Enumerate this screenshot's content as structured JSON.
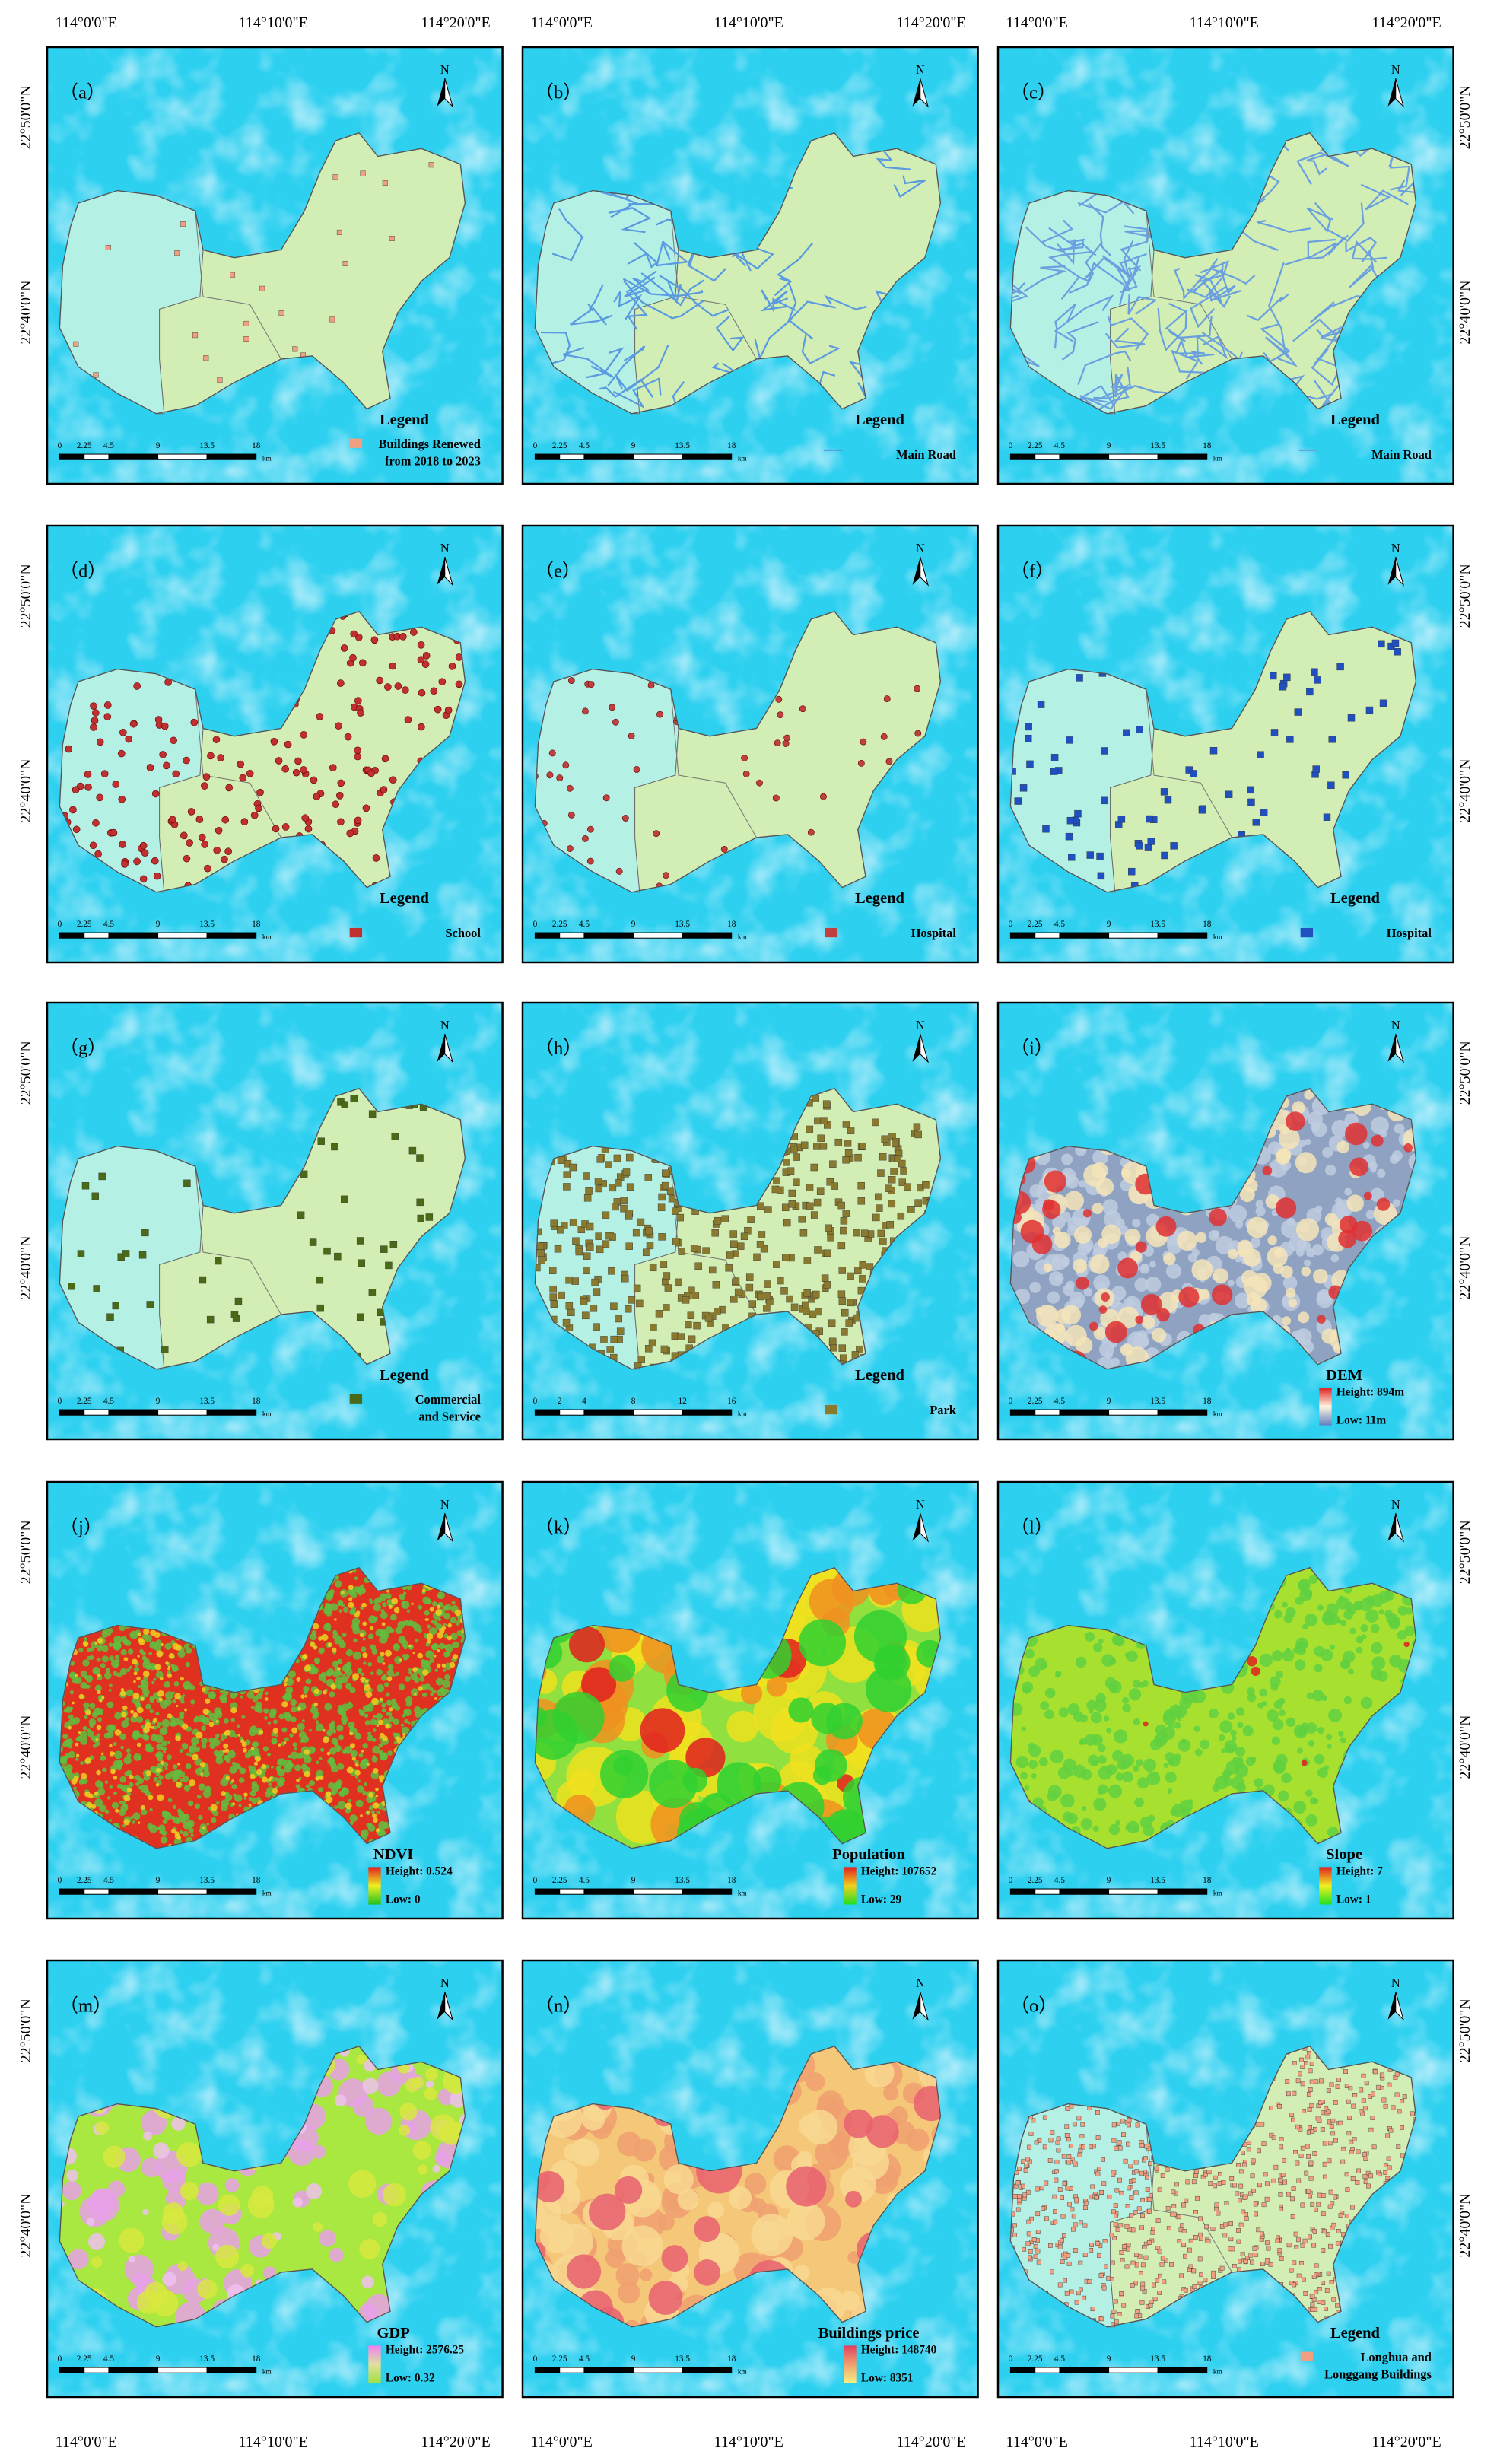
{
  "axes": {
    "lon": [
      "114°0'0\"E",
      "114°10'0\"E",
      "114°20'0\"E"
    ],
    "lat": [
      "22°50'0\"N",
      "22°40'0\"N"
    ]
  },
  "north": "N",
  "scale_unit": "km",
  "panels": [
    {
      "label": "（a）",
      "legend_title": "Legend",
      "legend_text": [
        "Buildings Renewed",
        "from 2018 to 2023"
      ],
      "scale": [
        "0",
        "2.25",
        "4.5",
        "9",
        "13.5",
        "18"
      ]
    },
    {
      "label": "（b）",
      "legend_title": "Legend",
      "legend_text": [
        "Main Road"
      ],
      "scale": [
        "0",
        "2.25",
        "4.5",
        "9",
        "13.5",
        "18"
      ]
    },
    {
      "label": "（c）",
      "legend_title": "Legend",
      "legend_text": [
        "Main Road"
      ],
      "scale": [
        "0",
        "2.25",
        "4.5",
        "9",
        "13.5",
        "18"
      ]
    },
    {
      "label": "（d）",
      "legend_title": "Legend",
      "legend_text": [
        "School"
      ],
      "scale": [
        "0",
        "2.25",
        "4.5",
        "9",
        "13.5",
        "18"
      ]
    },
    {
      "label": "（e）",
      "legend_title": "Legend",
      "legend_text": [
        "Hospital"
      ],
      "scale": [
        "0",
        "2.25",
        "4.5",
        "9",
        "13.5",
        "18"
      ]
    },
    {
      "label": "（f）",
      "legend_title": "Legend",
      "legend_text": [
        "Hospital"
      ],
      "scale": [
        "0",
        "2.25",
        "4.5",
        "9",
        "13.5",
        "18"
      ]
    },
    {
      "label": "（g）",
      "legend_title": "Legend",
      "legend_text": [
        "Commercial",
        "and Service"
      ],
      "scale": [
        "0",
        "2.25",
        "4.5",
        "9",
        "13.5",
        "18"
      ]
    },
    {
      "label": "（h）",
      "legend_title": "Legend",
      "legend_text": [
        "Park"
      ],
      "scale": [
        "0",
        "2",
        "4",
        "8",
        "12",
        "16"
      ]
    },
    {
      "label": "（i）",
      "legend_title": "DEM",
      "high": "Height: 894m",
      "low": "Low: 11m",
      "scale": [
        "0",
        "2.25",
        "4.5",
        "9",
        "13.5",
        "18"
      ]
    },
    {
      "label": "（j）",
      "legend_title": "NDVI",
      "high": "Height: 0.524",
      "low": "Low: 0",
      "scale": [
        "0",
        "2.25",
        "4.5",
        "9",
        "13.5",
        "18"
      ]
    },
    {
      "label": "（k）",
      "legend_title": "Population",
      "high": "Height: 107652",
      "low": "Low: 29",
      "scale": [
        "0",
        "2.25",
        "4.5",
        "9",
        "13.5",
        "18"
      ]
    },
    {
      "label": "（l）",
      "legend_title": "Slope",
      "high": "Height: 7",
      "low": "Low: 1",
      "scale": [
        "0",
        "2.25",
        "4.5",
        "9",
        "13.5",
        "18"
      ]
    },
    {
      "label": "（m）",
      "legend_title": "GDP",
      "high": "Height: 2576.25",
      "low": "Low: 0.32",
      "scale": [
        "0",
        "2.25",
        "4.5",
        "9",
        "13.5",
        "18"
      ]
    },
    {
      "label": "（n）",
      "legend_title": "Buildings price",
      "high": "Height: 148740",
      "low": "Low: 8351",
      "scale": [
        "0",
        "2.25",
        "4.5",
        "9",
        "13.5",
        "18"
      ]
    },
    {
      "label": "（o）",
      "legend_title": "Legend",
      "legend_text": [
        "Longhua and",
        "Longgang Buildings"
      ],
      "scale": [
        "0",
        "2.25",
        "4.5",
        "9",
        "13.5",
        "18"
      ]
    }
  ]
}
